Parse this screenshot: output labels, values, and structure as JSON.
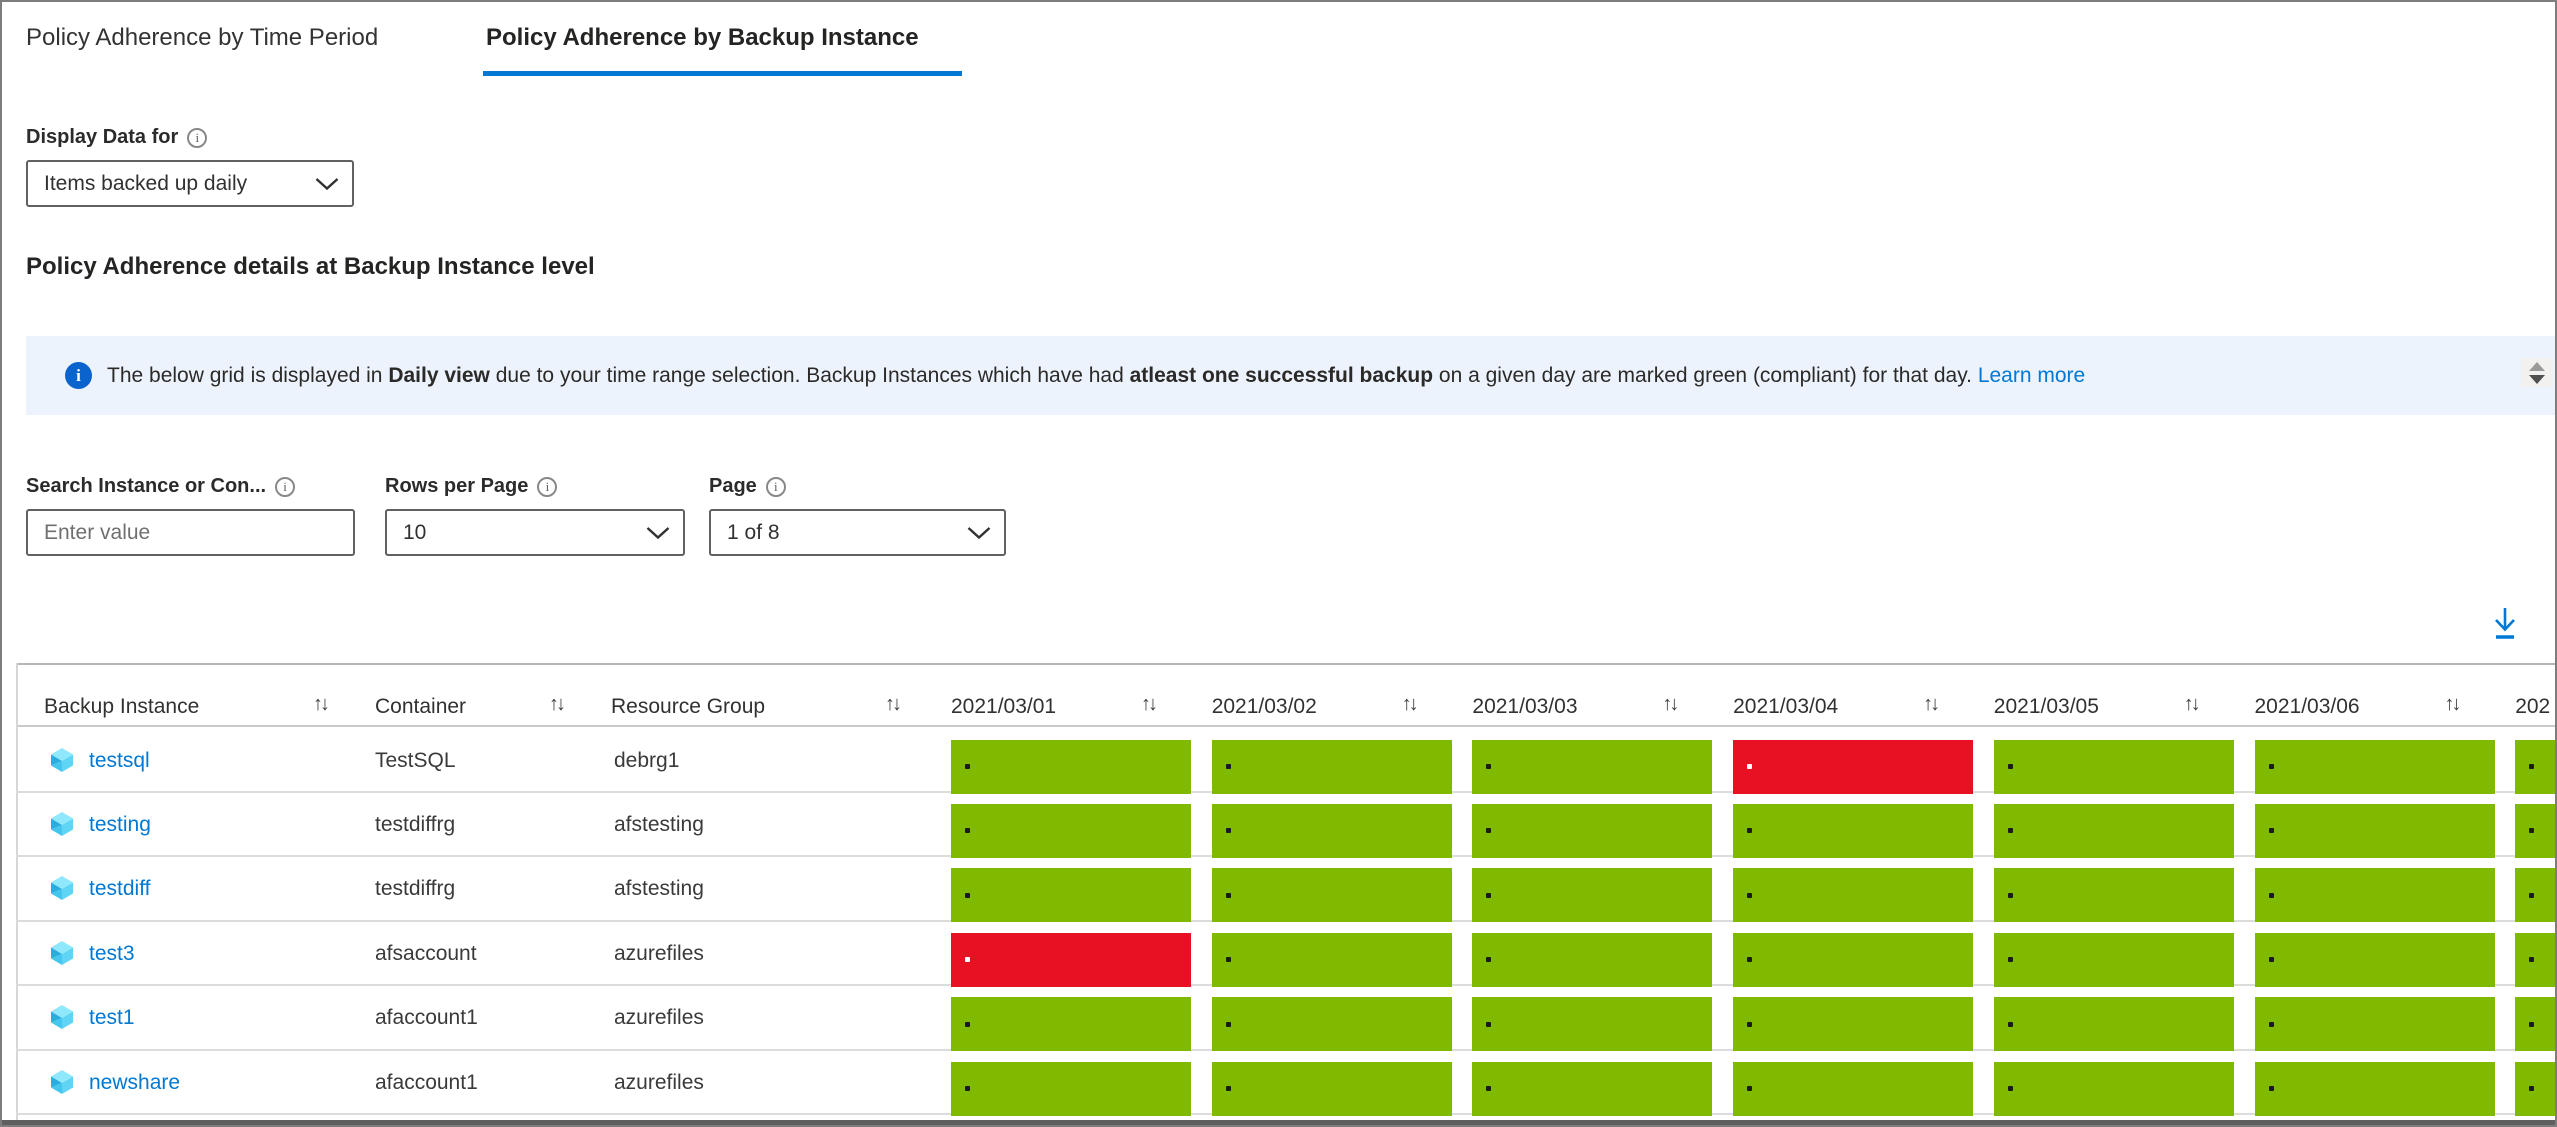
{
  "tabs": [
    {
      "label": "Policy Adherence by Time Period",
      "active": false
    },
    {
      "label": "Policy Adherence by Backup Instance",
      "active": true
    }
  ],
  "display_data": {
    "label": "Display Data for",
    "value": "Items backed up daily"
  },
  "section": {
    "title": "Policy Adherence details at Backup Instance level"
  },
  "banner": {
    "segments": [
      {
        "text": "The below grid is displayed in ",
        "bold": false
      },
      {
        "text": "Daily view",
        "bold": true
      },
      {
        "text": " due to your time range selection. Backup Instances which have had ",
        "bold": false
      },
      {
        "text": "atleast one successful backup",
        "bold": true
      },
      {
        "text": " on a given day are marked green (compliant) for that day. ",
        "bold": false
      }
    ],
    "learn_more": "Learn more"
  },
  "filters": {
    "search_label": "Search Instance or Con...",
    "search_placeholder": "Enter value",
    "rows_per_page_label": "Rows per Page",
    "rows_per_page_value": "10",
    "page_label": "Page",
    "page_value": "1 of 8"
  },
  "table": {
    "columns": [
      {
        "label": "Backup Instance"
      },
      {
        "label": "Container"
      },
      {
        "label": "Resource Group"
      }
    ],
    "date_columns": [
      "2021/03/01",
      "2021/03/02",
      "2021/03/03",
      "2021/03/04",
      "2021/03/05",
      "2021/03/06",
      "202"
    ],
    "rows": [
      {
        "instance": "testsql",
        "container": "TestSQL",
        "resource_group": "debrg1",
        "statuses": [
          "green",
          "green",
          "green",
          "red",
          "green",
          "green",
          "green"
        ]
      },
      {
        "instance": "testing",
        "container": "testdiffrg",
        "resource_group": "afstesting",
        "statuses": [
          "green",
          "green",
          "green",
          "green",
          "green",
          "green",
          "green"
        ]
      },
      {
        "instance": "testdiff",
        "container": "testdiffrg",
        "resource_group": "afstesting",
        "statuses": [
          "green",
          "green",
          "green",
          "green",
          "green",
          "green",
          "green"
        ]
      },
      {
        "instance": "test3",
        "container": "afsaccount",
        "resource_group": "azurefiles",
        "statuses": [
          "red",
          "green",
          "green",
          "green",
          "green",
          "green",
          "green"
        ]
      },
      {
        "instance": "test1",
        "container": "afaccount1",
        "resource_group": "azurefiles",
        "statuses": [
          "green",
          "green",
          "green",
          "green",
          "green",
          "green",
          "green"
        ]
      },
      {
        "instance": "newshare",
        "container": "afaccount1",
        "resource_group": "azurefiles",
        "statuses": [
          "green",
          "green",
          "green",
          "green",
          "green",
          "green",
          "green"
        ]
      }
    ]
  },
  "colors": {
    "accent": "#0078D4",
    "compliant_green": "#7FBA00",
    "non_compliant_red": "#E81123",
    "banner_bg": "#ECF3FC",
    "link": "#0078D4"
  },
  "icons": {
    "info": "i",
    "sort": "↑↓",
    "banner_info": "i"
  }
}
